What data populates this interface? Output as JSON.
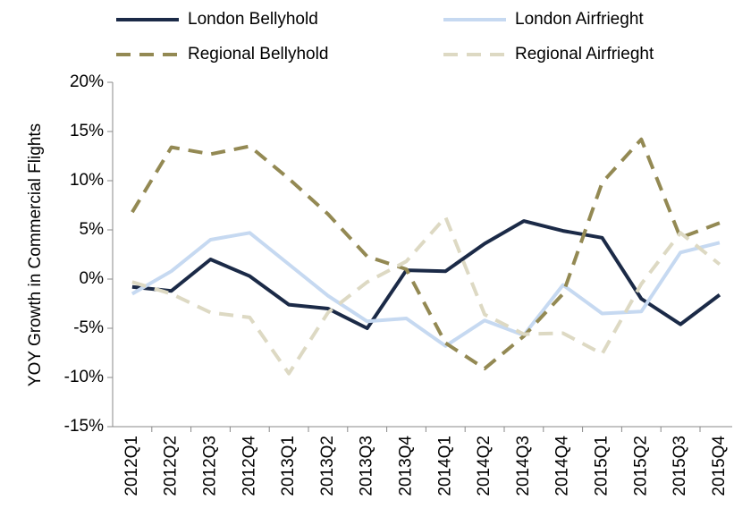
{
  "chart_data": {
    "type": "line",
    "y_label": "YOY Growth in Commercial Flights",
    "categories": [
      "2012Q1",
      "2012Q2",
      "2012Q3",
      "2012Q4",
      "2013Q1",
      "2013Q2",
      "2013Q3",
      "2013Q4",
      "2014Q1",
      "2014Q2",
      "2014Q3",
      "2014Q4",
      "2015Q1",
      "2015Q2",
      "2015Q3",
      "2015Q4"
    ],
    "series": [
      {
        "name": "London Bellyhold",
        "color": "#1b2a47",
        "dashed": false,
        "values": [
          -0.8,
          -1.2,
          2.0,
          0.3,
          -2.6,
          -3.0,
          -5.0,
          0.9,
          0.8,
          3.6,
          5.9,
          4.9,
          4.2,
          -2.0,
          -4.6,
          -1.6
        ]
      },
      {
        "name": "London Airfrieght",
        "color": "#c6d9f1",
        "dashed": false,
        "values": [
          -1.5,
          0.8,
          4.0,
          4.7,
          1.5,
          -1.7,
          -4.3,
          -4.0,
          -6.8,
          -4.2,
          -5.7,
          -0.6,
          -3.5,
          -3.3,
          2.7,
          3.7
        ]
      },
      {
        "name": "Regional Bellyhold",
        "color": "#938953",
        "dashed": true,
        "values": [
          6.8,
          13.4,
          12.7,
          13.5,
          10.2,
          6.6,
          2.3,
          1.0,
          -6.5,
          -9.1,
          -5.8,
          -1.5,
          9.8,
          14.2,
          4.2,
          5.7
        ]
      },
      {
        "name": "Regional Airfrieght",
        "color": "#ddd9c3",
        "dashed": true,
        "values": [
          -0.3,
          -1.5,
          -3.4,
          -3.9,
          -9.6,
          -3.4,
          -0.3,
          1.8,
          6.3,
          -3.6,
          -5.6,
          -5.5,
          -7.6,
          -0.5,
          4.7,
          1.5
        ]
      }
    ],
    "ylim": [
      -15,
      20
    ],
    "yticks": [
      {
        "value": -15,
        "label": "-15%"
      },
      {
        "value": -10,
        "label": "-10%"
      },
      {
        "value": -5,
        "label": "-5%"
      },
      {
        "value": 0,
        "label": "0%"
      },
      {
        "value": 5,
        "label": "5%"
      },
      {
        "value": 10,
        "label": "10%"
      },
      {
        "value": 15,
        "label": "15%"
      },
      {
        "value": 20,
        "label": "20%"
      }
    ],
    "grid": false
  }
}
